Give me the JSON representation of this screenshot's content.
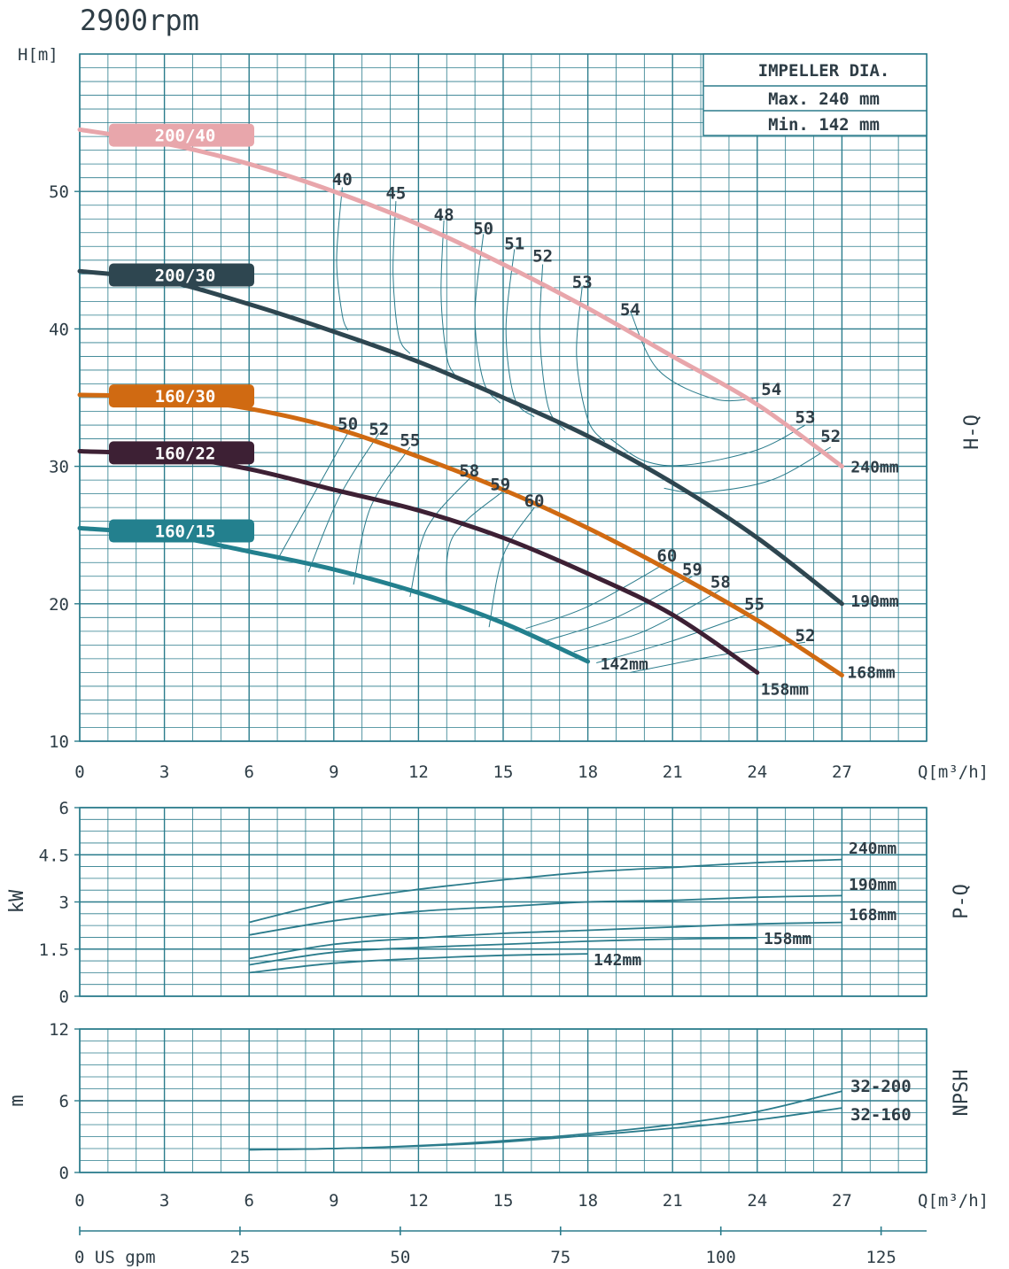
{
  "title": "2900rpm",
  "impeller_box": {
    "header": "IMPELLER DIA.",
    "max": "Max. 240 mm",
    "min": "Min. 142 mm"
  },
  "colors": {
    "grid": "#2b7c8c",
    "text": "#2e3d46",
    "perf_line": "#2b7c8c",
    "eff_line": "#2b7c8c",
    "c200_40": "#e8a6ab",
    "c200_30": "#2e4650",
    "c160_30": "#d06a12",
    "c160_22": "#3d2034",
    "c160_15": "#23808e"
  },
  "chart_data": [
    {
      "type": "line",
      "name": "H-Q",
      "side_label": "H-Q",
      "ylabel": "H[m]",
      "xlabel": "Q[m³/h]",
      "xlim": [
        0,
        30
      ],
      "ylim": [
        10,
        60
      ],
      "x_ticks": [
        "0",
        "3",
        "6",
        "9",
        "12",
        "15",
        "18",
        "21",
        "24",
        "27"
      ],
      "y_ticks": [
        {
          "v": 10,
          "label": "10"
        },
        {
          "v": 20,
          "label": "20"
        },
        {
          "v": 30,
          "label": "30"
        },
        {
          "v": 40,
          "label": "40"
        },
        {
          "v": 50,
          "label": "50"
        }
      ],
      "grid": true,
      "series": [
        {
          "name": "200/40",
          "end_label": "240mm",
          "color": "#e8a6ab",
          "x": [
            0,
            3,
            6,
            9,
            12,
            15,
            18,
            21,
            24,
            27
          ],
          "y": [
            54.5,
            53.5,
            52.0,
            50.0,
            47.6,
            44.7,
            41.5,
            38.0,
            34.5,
            30.0
          ]
        },
        {
          "name": "200/30",
          "end_label": "190mm",
          "color": "#2e4650",
          "x": [
            0,
            3,
            6,
            9,
            12,
            15,
            18,
            21,
            24,
            27
          ],
          "y": [
            44.2,
            43.5,
            41.8,
            39.8,
            37.6,
            35.0,
            32.2,
            28.8,
            24.8,
            20.0
          ]
        },
        {
          "name": "160/30",
          "end_label": "168mm",
          "color": "#d06a12",
          "x": [
            0,
            3,
            6,
            9,
            12,
            15,
            18,
            21,
            24,
            27
          ],
          "y": [
            35.2,
            35.0,
            34.2,
            32.8,
            30.7,
            28.3,
            25.5,
            22.3,
            18.8,
            14.8
          ]
        },
        {
          "name": "160/22",
          "end_label": "158mm",
          "color": "#3d2034",
          "x": [
            0,
            3,
            6,
            9,
            12,
            15,
            18,
            21,
            24
          ],
          "y": [
            31.1,
            30.8,
            29.8,
            28.3,
            26.8,
            24.8,
            22.2,
            19.2,
            15.0
          ]
        },
        {
          "name": "160/15",
          "end_label": "142mm",
          "color": "#23808e",
          "x": [
            0,
            3,
            6,
            9,
            12,
            15,
            18
          ],
          "y": [
            25.5,
            25.0,
            23.8,
            22.5,
            20.8,
            18.6,
            15.8
          ]
        }
      ],
      "efficiency_labels_upper": [
        {
          "text": "40",
          "q": 9.3,
          "h": 50.8
        },
        {
          "text": "45",
          "q": 11.2,
          "h": 49.8
        },
        {
          "text": "48",
          "q": 12.9,
          "h": 48.2
        },
        {
          "text": "50",
          "q": 14.3,
          "h": 47.2
        },
        {
          "text": "51",
          "q": 15.4,
          "h": 46.1
        },
        {
          "text": "52",
          "q": 16.4,
          "h": 45.2
        },
        {
          "text": "53",
          "q": 17.8,
          "h": 43.3
        },
        {
          "text": "54",
          "q": 19.5,
          "h": 41.3
        },
        {
          "text": "54",
          "q": 24.5,
          "h": 35.5
        },
        {
          "text": "53",
          "q": 25.7,
          "h": 33.5
        },
        {
          "text": "52",
          "q": 26.6,
          "h": 32.1
        }
      ],
      "efficiency_labels_lower": [
        {
          "text": "50",
          "q": 9.5,
          "h": 33.0
        },
        {
          "text": "52",
          "q": 10.6,
          "h": 32.6
        },
        {
          "text": "55",
          "q": 11.7,
          "h": 31.8
        },
        {
          "text": "58",
          "q": 13.8,
          "h": 29.6
        },
        {
          "text": "59",
          "q": 14.9,
          "h": 28.6
        },
        {
          "text": "60",
          "q": 16.1,
          "h": 27.4
        },
        {
          "text": "60",
          "q": 20.8,
          "h": 23.4
        },
        {
          "text": "59",
          "q": 21.7,
          "h": 22.4
        },
        {
          "text": "58",
          "q": 22.7,
          "h": 21.5
        },
        {
          "text": "55",
          "q": 23.9,
          "h": 19.9
        },
        {
          "text": "52",
          "q": 25.7,
          "h": 17.6
        }
      ],
      "iso_efficiency_curves": [
        {
          "x": [
            9.3,
            9.1,
            9.3,
            9.5
          ],
          "y": [
            50.3,
            45.0,
            41.0,
            39.9
          ]
        },
        {
          "x": [
            11.2,
            11.1,
            11.3,
            11.7
          ],
          "y": [
            49.3,
            44.0,
            39.5,
            38.2
          ]
        },
        {
          "x": [
            12.9,
            12.8,
            13.0,
            13.3
          ],
          "y": [
            47.9,
            42.5,
            38.0,
            36.6
          ]
        },
        {
          "x": [
            14.3,
            14.0,
            14.3,
            14.9
          ],
          "y": [
            46.9,
            41.0,
            36.2,
            34.6
          ]
        },
        {
          "x": [
            15.4,
            15.1,
            15.4,
            16.1
          ],
          "y": [
            45.8,
            40.0,
            35.0,
            33.6
          ]
        },
        {
          "x": [
            16.4,
            16.3,
            16.6,
            17.2
          ],
          "y": [
            44.7,
            39.5,
            34.3,
            32.6
          ]
        },
        {
          "x": [
            17.8,
            17.6,
            18.0,
            18.6
          ],
          "y": [
            43.1,
            38.0,
            33.4,
            31.8
          ]
        },
        {
          "x": [
            19.5,
            20.5,
            22.5,
            24.1
          ],
          "y": [
            41.3,
            37.0,
            34.9,
            35.0
          ]
        },
        {
          "x": [
            18.8,
            20.0,
            21.5,
            24.0,
            25.7
          ],
          "y": [
            32.0,
            30.4,
            30.1,
            31.2,
            33.0
          ]
        },
        {
          "x": [
            20.7,
            22.0,
            24.5,
            26.6
          ],
          "y": [
            28.4,
            28.1,
            29.0,
            31.4
          ]
        },
        {
          "x": [
            7.0,
            8.3,
            9.6
          ],
          "y": [
            23.2,
            28.0,
            32.8
          ]
        },
        {
          "x": [
            8.1,
            9.2,
            10.6
          ],
          "y": [
            22.3,
            27.8,
            32.4
          ]
        },
        {
          "x": [
            9.7,
            10.3,
            11.7
          ],
          "y": [
            21.4,
            27.0,
            31.4
          ]
        },
        {
          "x": [
            11.7,
            12.3,
            13.9
          ],
          "y": [
            20.5,
            25.5,
            29.3
          ]
        },
        {
          "x": [
            13.0,
            13.2,
            15.0
          ],
          "y": [
            20.0,
            24.8,
            28.2
          ]
        },
        {
          "x": [
            14.5,
            15.0,
            16.1
          ],
          "y": [
            18.3,
            23.5,
            27.0
          ]
        },
        {
          "x": [
            15.8,
            18.0,
            20.8
          ],
          "y": [
            18.2,
            19.8,
            23.0
          ]
        },
        {
          "x": [
            16.5,
            19.0,
            21.7
          ],
          "y": [
            17.3,
            19.0,
            22.0
          ]
        },
        {
          "x": [
            17.5,
            20.0,
            22.7
          ],
          "y": [
            16.5,
            18.0,
            21.0
          ]
        },
        {
          "x": [
            18.3,
            21.0,
            23.9
          ],
          "y": [
            15.7,
            17.3,
            19.4
          ]
        },
        {
          "x": [
            19.5,
            22.5,
            25.7
          ],
          "y": [
            15.0,
            16.2,
            17.2
          ]
        }
      ]
    },
    {
      "type": "line",
      "name": "P-Q",
      "side_label": "P-Q",
      "ylabel": "kW",
      "xlabel": "Q[m³/h]",
      "xlim": [
        0,
        30
      ],
      "ylim": [
        0,
        6
      ],
      "y_ticks": [
        {
          "v": 0,
          "label": "0"
        },
        {
          "v": 1.5,
          "label": "1.5"
        },
        {
          "v": 3,
          "label": "3"
        },
        {
          "v": 4.5,
          "label": "4.5"
        },
        {
          "v": 6,
          "label": "6"
        }
      ],
      "grid": true,
      "series": [
        {
          "name": "240mm",
          "x": [
            6,
            9,
            12,
            15,
            18,
            21,
            24,
            27
          ],
          "y": [
            2.35,
            3.0,
            3.4,
            3.7,
            3.95,
            4.1,
            4.25,
            4.35
          ]
        },
        {
          "name": "190mm",
          "x": [
            6,
            9,
            12,
            15,
            18,
            21,
            24,
            27
          ],
          "y": [
            1.95,
            2.4,
            2.7,
            2.85,
            3.0,
            3.05,
            3.15,
            3.2
          ]
        },
        {
          "name": "168mm",
          "x": [
            6,
            9,
            12,
            15,
            18,
            21,
            24,
            27
          ],
          "y": [
            1.2,
            1.65,
            1.85,
            2.0,
            2.1,
            2.2,
            2.3,
            2.35
          ]
        },
        {
          "name": "158mm",
          "x": [
            6,
            9,
            12,
            15,
            18,
            21,
            24
          ],
          "y": [
            1.0,
            1.4,
            1.55,
            1.65,
            1.75,
            1.82,
            1.85
          ]
        },
        {
          "name": "142mm",
          "x": [
            6,
            9,
            12,
            15,
            18
          ],
          "y": [
            0.75,
            1.05,
            1.2,
            1.3,
            1.35
          ]
        }
      ]
    },
    {
      "type": "line",
      "name": "NPSH",
      "side_label": "NPSH",
      "ylabel": "m",
      "xlabel": "Q[m³/h]",
      "xlim": [
        0,
        30
      ],
      "ylim": [
        0,
        12
      ],
      "x_ticks": [
        "0",
        "3",
        "6",
        "9",
        "12",
        "15",
        "18",
        "21",
        "24",
        "27"
      ],
      "y_ticks": [
        {
          "v": 0,
          "label": "0"
        },
        {
          "v": 6,
          "label": "6"
        },
        {
          "v": 12,
          "label": "12"
        }
      ],
      "grid": true,
      "series": [
        {
          "name": "32-200",
          "x": [
            6,
            9,
            12,
            15,
            18,
            21,
            24,
            27
          ],
          "y": [
            1.9,
            2.0,
            2.25,
            2.65,
            3.25,
            4.0,
            5.1,
            6.8
          ]
        },
        {
          "name": "32-160",
          "x": [
            6,
            9,
            12,
            15,
            18,
            21,
            24,
            27
          ],
          "y": [
            1.9,
            2.0,
            2.2,
            2.55,
            3.1,
            3.7,
            4.4,
            5.4
          ]
        }
      ]
    }
  ],
  "gpm_axis": {
    "label_start": "0  US gpm",
    "ticks": [
      "25",
      "50",
      "75",
      "100",
      "125"
    ],
    "values": [
      25,
      50,
      75,
      100,
      125
    ],
    "max": 132.1
  }
}
